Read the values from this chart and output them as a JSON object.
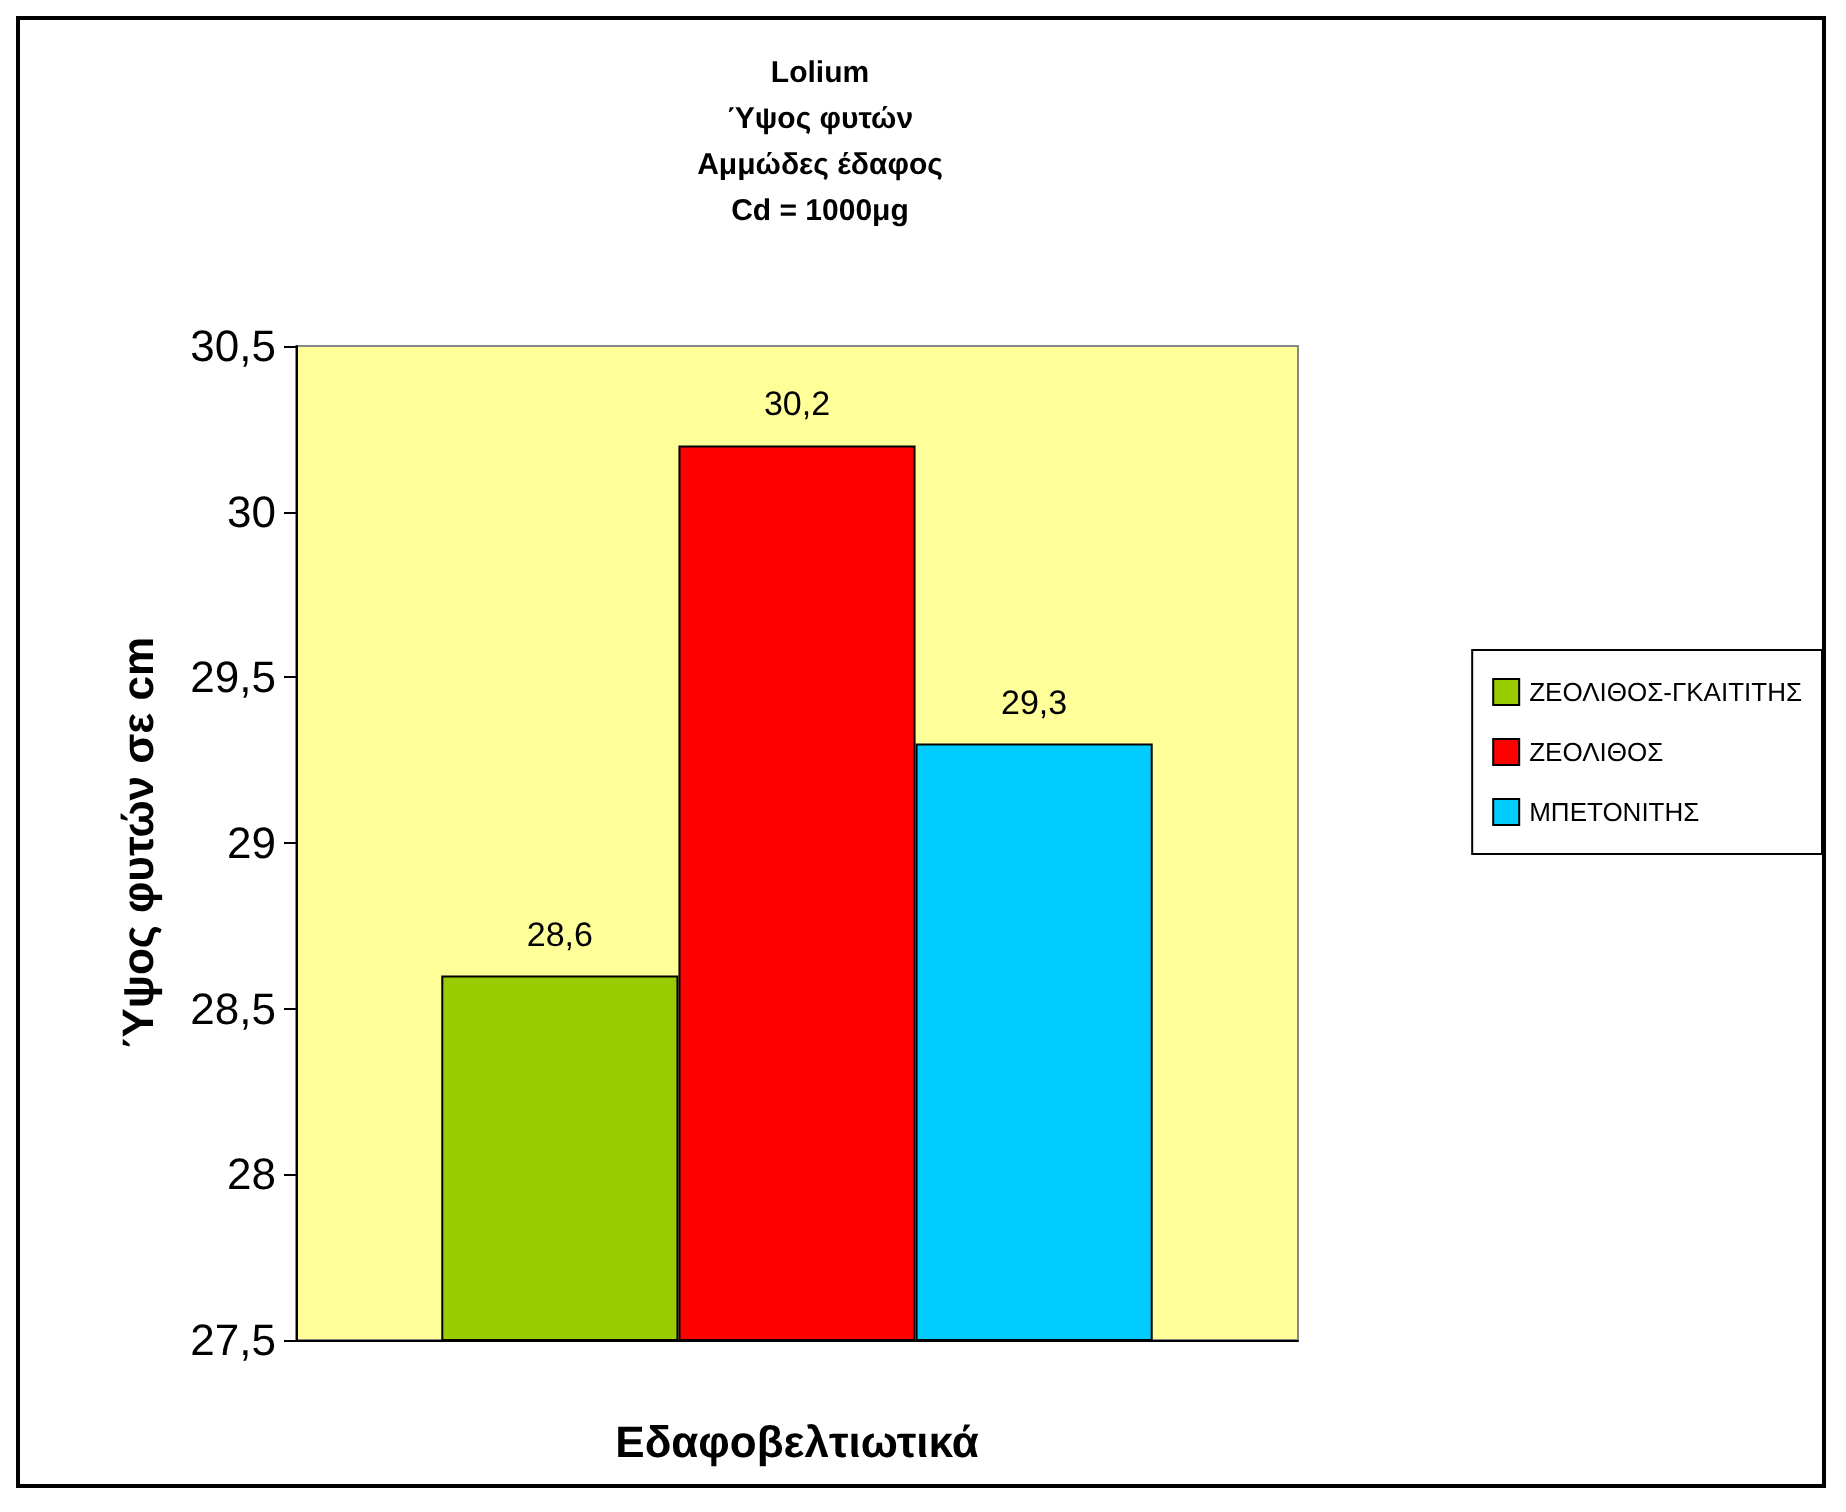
{
  "chart_data": {
    "type": "bar",
    "title": "Lolium\nΎψος φυτών\nΑμμώδες έδαφος\nCd = 1000μg",
    "xlabel": "Εδαφοβελτιωτικά",
    "ylabel": "Ύψος φυτών σε cm",
    "categories": [
      null
    ],
    "series": [
      {
        "name": "ΖΕΟΛΙΘΟΣ-ΓΚΑΙΤΙΤΗΣ",
        "color": "#99cc00",
        "values": [
          28.6
        ],
        "value_labels": [
          "28,6"
        ]
      },
      {
        "name": "ΖΕΟΛΙΘΟΣ",
        "color": "#ff0000",
        "values": [
          30.2
        ],
        "value_labels": [
          "30,2"
        ]
      },
      {
        "name": "ΜΠΕΤΟΝΙΤΗΣ",
        "color": "#00ccff",
        "values": [
          29.3
        ],
        "value_labels": [
          "29,3"
        ]
      }
    ],
    "ylim": [
      27.5,
      30.5
    ],
    "yticks": [
      {
        "value": 27.5,
        "label": "27,5"
      },
      28,
      {
        "value": 28.5,
        "label": "28,5"
      },
      29,
      {
        "value": 29.5,
        "label": "29,5"
      },
      30,
      {
        "value": 30.5,
        "label": "30,5"
      }
    ],
    "grid": false,
    "legend": "right"
  }
}
